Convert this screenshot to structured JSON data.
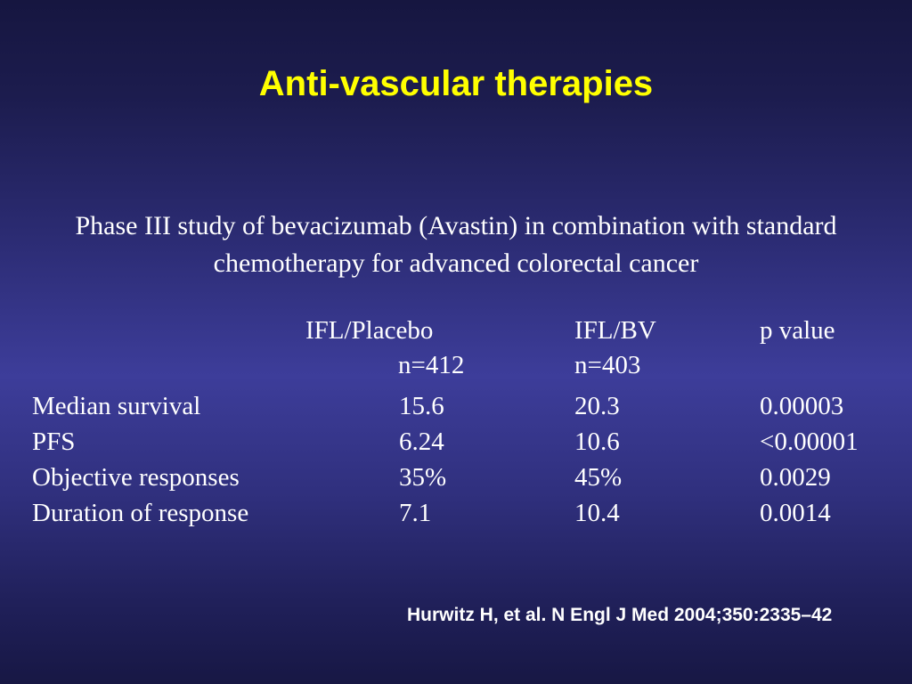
{
  "slide": {
    "title": "Anti-vascular therapies",
    "study_description_line1": "Phase III study of bevacizumab (Avastin) in combination with standard",
    "study_description_line2": "chemotherapy for advanced colorectal cancer",
    "citation": "Hurwitz H, et al. N Engl J Med 2004;350:2335–42"
  },
  "results_table": {
    "header": {
      "col1": "IFL/Placebo",
      "col2": "IFL/BV",
      "col3": "p value",
      "n_col1": "n=412",
      "n_col2": "n=403"
    },
    "rows": [
      {
        "label": "Median survival",
        "ifl_placebo": "15.6",
        "ifl_bv": "20.3",
        "p_value": "0.00003"
      },
      {
        "label": "PFS",
        "ifl_placebo": "6.24",
        "ifl_bv": "10.6",
        "p_value": "<0.00001"
      },
      {
        "label": "Objective responses",
        "ifl_placebo": "35%",
        "ifl_bv": "45%",
        "p_value": "0.0029"
      },
      {
        "label": "Duration of response",
        "ifl_placebo": "7.1",
        "ifl_bv": "10.4",
        "p_value": "0.0014"
      }
    ]
  },
  "colors": {
    "title_yellow": "#ffff00",
    "body_text": "#ffffff",
    "bg_top": "#161640",
    "bg_mid": "#3d3d9a",
    "bg_bottom": "#171744"
  }
}
